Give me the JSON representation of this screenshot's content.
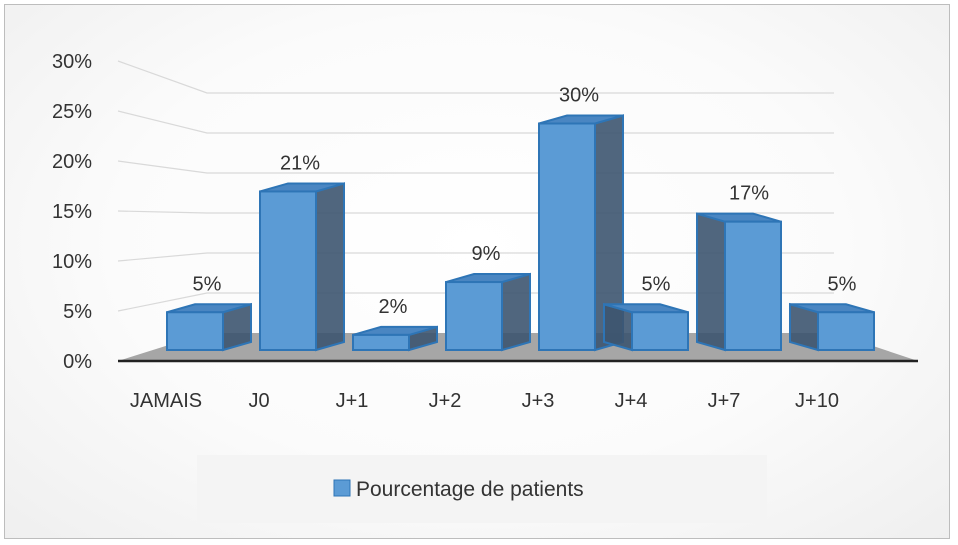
{
  "chart_data": {
    "type": "bar",
    "categories": [
      "JAMAIS",
      "J0",
      "J+1",
      "J+2",
      "J+3",
      "J+4",
      "J+7",
      "J+10"
    ],
    "series": [
      {
        "name": "Pourcentage de patients",
        "values": [
          5,
          21,
          2,
          9,
          30,
          5,
          17,
          5
        ],
        "color": "#5B9BD5"
      }
    ],
    "data_labels": [
      "5%",
      "21%",
      "2%",
      "9%",
      "30%",
      "5%",
      "17%",
      "5%"
    ],
    "y_ticks": [
      "0%",
      "5%",
      "10%",
      "15%",
      "20%",
      "25%",
      "30%"
    ],
    "ylim": [
      0,
      30
    ],
    "title": "",
    "xlabel": "",
    "ylabel": "",
    "legend_position": "bottom",
    "grid": true,
    "style": "3d-column"
  }
}
